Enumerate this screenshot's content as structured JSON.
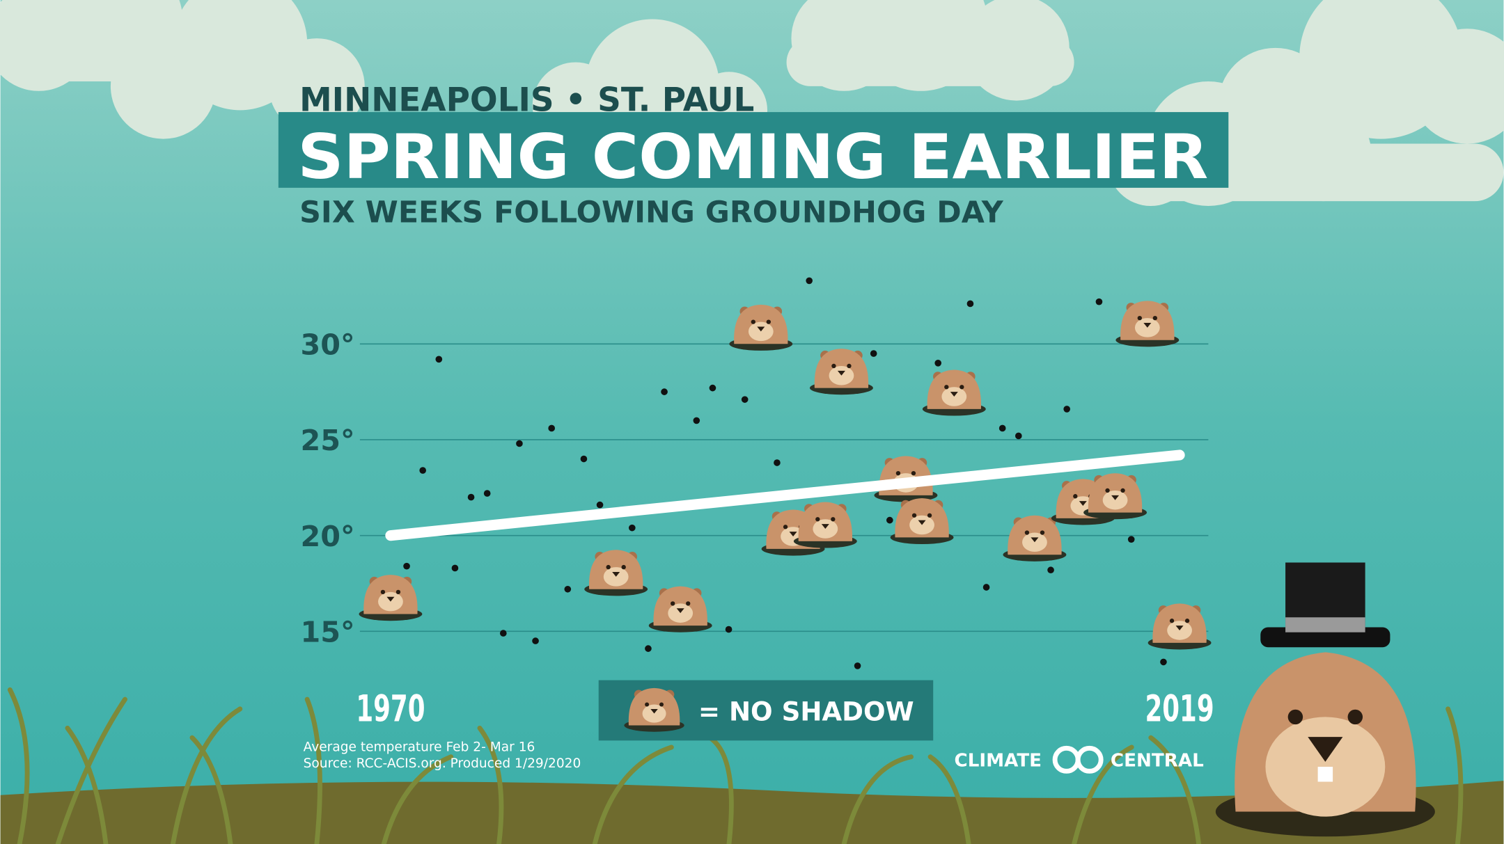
{
  "chart_data": {
    "type": "scatter",
    "location": "MINNEAPOLIS • ST. PAUL",
    "title": "SPRING COMING EARLIER",
    "subtitle": "SIX WEEKS FOLLOWING GROUNDHOG DAY",
    "x": [
      1970,
      1971,
      1972,
      1973,
      1974,
      1975,
      1976,
      1977,
      1978,
      1979,
      1980,
      1981,
      1982,
      1983,
      1984,
      1985,
      1986,
      1987,
      1988,
      1989,
      1990,
      1991,
      1992,
      1993,
      1994,
      1995,
      1996,
      1997,
      1998,
      1999,
      2000,
      2001,
      2002,
      2003,
      2004,
      2005,
      2006,
      2007,
      2008,
      2009,
      2010,
      2011,
      2012,
      2013,
      2014,
      2015,
      2016,
      2017,
      2018,
      2019
    ],
    "values": [
      16.7,
      18.4,
      23.4,
      29.2,
      18.3,
      22.0,
      22.2,
      14.9,
      24.8,
      14.5,
      25.6,
      17.2,
      24.0,
      21.6,
      18.0,
      20.4,
      14.1,
      27.5,
      16.1,
      26.0,
      27.7,
      15.1,
      27.1,
      30.8,
      23.8,
      20.1,
      33.3,
      20.5,
      28.5,
      13.2,
      29.5,
      20.8,
      22.9,
      20.7,
      29.0,
      27.4,
      32.1,
      17.3,
      25.6,
      25.2,
      19.8,
      18.2,
      26.6,
      21.7,
      32.2,
      22.0,
      19.8,
      31.0,
      13.4,
      15.2
    ],
    "no_shadow": [
      true,
      false,
      false,
      false,
      false,
      false,
      false,
      false,
      false,
      false,
      false,
      false,
      false,
      false,
      true,
      false,
      false,
      false,
      true,
      false,
      false,
      false,
      false,
      true,
      false,
      true,
      false,
      true,
      true,
      false,
      false,
      false,
      true,
      true,
      false,
      true,
      false,
      false,
      false,
      false,
      true,
      false,
      false,
      true,
      false,
      true,
      false,
      true,
      false,
      true
    ],
    "trend_values": [
      20.0,
      24.2
    ],
    "color": "#111111",
    "trend_color": "#ffffff",
    "xlim": [
      1970,
      2019
    ],
    "xticks": [
      1970,
      2019
    ],
    "ylim": [
      12,
      34
    ],
    "yticks": [
      {
        "value": 15,
        "label": "15°"
      },
      {
        "value": 20,
        "label": "20°"
      },
      {
        "value": 25,
        "label": "25°"
      },
      {
        "value": 30,
        "label": "30°"
      }
    ],
    "grid": true,
    "legend_label": "= NO SHADOW",
    "notes": [
      "Average temperature Feb 2- Mar 16",
      "Source: RCC-ACIS.org. Produced 1/29/2020"
    ],
    "logo": [
      "CLIMATE",
      "CENTRAL"
    ]
  }
}
